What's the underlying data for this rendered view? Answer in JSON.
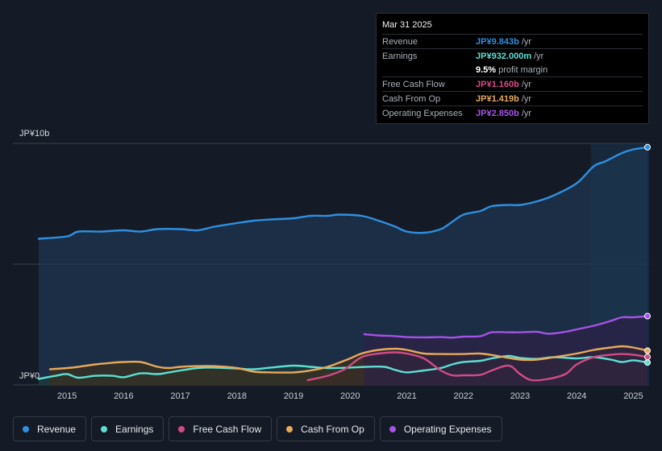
{
  "chart_data": {
    "type": "area",
    "y_axis": {
      "top_label": "JP¥10b",
      "bottom_label": "JP¥0",
      "ylim": [
        0,
        10
      ],
      "unit": "JP¥ billions"
    },
    "x_axis": {
      "ticks": [
        "2015",
        "2016",
        "2017",
        "2018",
        "2019",
        "2020",
        "2021",
        "2022",
        "2023",
        "2024",
        "2025"
      ],
      "xlim": [
        2014.5,
        2025.25
      ]
    },
    "forecast_highlight_from": 2024.25,
    "series": [
      {
        "name": "Revenue",
        "color": "#2f8fe0",
        "fill": true,
        "fill_color": "#1d3550",
        "points": [
          [
            2014.5,
            6.05
          ],
          [
            2015.0,
            6.15
          ],
          [
            2015.2,
            6.35
          ],
          [
            2015.6,
            6.35
          ],
          [
            2016.0,
            6.4
          ],
          [
            2016.3,
            6.35
          ],
          [
            2016.6,
            6.45
          ],
          [
            2017.0,
            6.45
          ],
          [
            2017.3,
            6.4
          ],
          [
            2017.6,
            6.55
          ],
          [
            2018.0,
            6.7
          ],
          [
            2018.3,
            6.8
          ],
          [
            2018.6,
            6.85
          ],
          [
            2019.0,
            6.9
          ],
          [
            2019.3,
            7.0
          ],
          [
            2019.6,
            7.0
          ],
          [
            2019.8,
            7.05
          ],
          [
            2020.2,
            7.0
          ],
          [
            2020.5,
            6.8
          ],
          [
            2020.8,
            6.55
          ],
          [
            2021.0,
            6.35
          ],
          [
            2021.3,
            6.3
          ],
          [
            2021.6,
            6.45
          ],
          [
            2021.8,
            6.75
          ],
          [
            2022.0,
            7.05
          ],
          [
            2022.3,
            7.2
          ],
          [
            2022.5,
            7.4
          ],
          [
            2022.8,
            7.45
          ],
          [
            2023.0,
            7.45
          ],
          [
            2023.3,
            7.6
          ],
          [
            2023.6,
            7.85
          ],
          [
            2024.0,
            8.35
          ],
          [
            2024.3,
            9.05
          ],
          [
            2024.5,
            9.25
          ],
          [
            2024.8,
            9.6
          ],
          [
            2025.0,
            9.75
          ],
          [
            2025.25,
            9.84
          ]
        ]
      },
      {
        "name": "Earnings",
        "color": "#5ce0d2",
        "fill": true,
        "fill_color": "#1e3a3b",
        "points": [
          [
            2014.5,
            0.25
          ],
          [
            2014.8,
            0.38
          ],
          [
            2015.0,
            0.45
          ],
          [
            2015.2,
            0.3
          ],
          [
            2015.5,
            0.38
          ],
          [
            2015.8,
            0.38
          ],
          [
            2016.0,
            0.32
          ],
          [
            2016.3,
            0.48
          ],
          [
            2016.6,
            0.45
          ],
          [
            2016.8,
            0.52
          ],
          [
            2017.0,
            0.6
          ],
          [
            2017.3,
            0.7
          ],
          [
            2017.6,
            0.72
          ],
          [
            2018.0,
            0.68
          ],
          [
            2018.3,
            0.65
          ],
          [
            2018.6,
            0.72
          ],
          [
            2019.0,
            0.8
          ],
          [
            2019.3,
            0.75
          ],
          [
            2019.6,
            0.7
          ],
          [
            2020.0,
            0.72
          ],
          [
            2020.3,
            0.75
          ],
          [
            2020.6,
            0.75
          ],
          [
            2020.8,
            0.62
          ],
          [
            2021.0,
            0.52
          ],
          [
            2021.3,
            0.6
          ],
          [
            2021.6,
            0.7
          ],
          [
            2021.8,
            0.85
          ],
          [
            2022.0,
            0.95
          ],
          [
            2022.3,
            1.0
          ],
          [
            2022.5,
            1.1
          ],
          [
            2022.8,
            1.2
          ],
          [
            2023.0,
            1.12
          ],
          [
            2023.3,
            1.08
          ],
          [
            2023.6,
            1.15
          ],
          [
            2024.0,
            1.1
          ],
          [
            2024.3,
            1.15
          ],
          [
            2024.6,
            1.05
          ],
          [
            2024.8,
            0.95
          ],
          [
            2025.0,
            1.02
          ],
          [
            2025.25,
            0.93
          ]
        ]
      },
      {
        "name": "Free Cash Flow",
        "color": "#d24b84",
        "fill": true,
        "fill_color": "#3a1f33",
        "points": [
          [
            2019.25,
            0.2
          ],
          [
            2019.6,
            0.38
          ],
          [
            2019.9,
            0.65
          ],
          [
            2020.2,
            1.15
          ],
          [
            2020.5,
            1.3
          ],
          [
            2020.8,
            1.35
          ],
          [
            2021.0,
            1.3
          ],
          [
            2021.3,
            1.1
          ],
          [
            2021.6,
            0.6
          ],
          [
            2021.8,
            0.4
          ],
          [
            2022.0,
            0.4
          ],
          [
            2022.3,
            0.42
          ],
          [
            2022.5,
            0.6
          ],
          [
            2022.8,
            0.8
          ],
          [
            2023.0,
            0.45
          ],
          [
            2023.2,
            0.2
          ],
          [
            2023.5,
            0.25
          ],
          [
            2023.8,
            0.45
          ],
          [
            2024.0,
            0.85
          ],
          [
            2024.3,
            1.15
          ],
          [
            2024.6,
            1.25
          ],
          [
            2024.8,
            1.28
          ],
          [
            2025.0,
            1.25
          ],
          [
            2025.25,
            1.16
          ]
        ]
      },
      {
        "name": "Cash From Op",
        "color": "#e8a95a",
        "fill": true,
        "fill_color": "#3a3022",
        "points": [
          [
            2014.7,
            0.65
          ],
          [
            2015.0,
            0.7
          ],
          [
            2015.2,
            0.75
          ],
          [
            2015.5,
            0.85
          ],
          [
            2015.8,
            0.92
          ],
          [
            2016.0,
            0.95
          ],
          [
            2016.3,
            0.95
          ],
          [
            2016.6,
            0.75
          ],
          [
            2016.8,
            0.7
          ],
          [
            2017.0,
            0.75
          ],
          [
            2017.3,
            0.78
          ],
          [
            2017.6,
            0.78
          ],
          [
            2018.0,
            0.7
          ],
          [
            2018.3,
            0.55
          ],
          [
            2018.6,
            0.52
          ],
          [
            2019.0,
            0.52
          ],
          [
            2019.3,
            0.6
          ],
          [
            2019.6,
            0.75
          ],
          [
            2020.0,
            1.1
          ],
          [
            2020.2,
            1.3
          ],
          [
            2020.5,
            1.45
          ],
          [
            2020.8,
            1.5
          ],
          [
            2021.0,
            1.45
          ],
          [
            2021.3,
            1.3
          ],
          [
            2021.6,
            1.28
          ],
          [
            2022.0,
            1.28
          ],
          [
            2022.3,
            1.3
          ],
          [
            2022.6,
            1.2
          ],
          [
            2023.0,
            1.05
          ],
          [
            2023.3,
            1.05
          ],
          [
            2023.6,
            1.15
          ],
          [
            2024.0,
            1.3
          ],
          [
            2024.3,
            1.45
          ],
          [
            2024.6,
            1.55
          ],
          [
            2024.8,
            1.6
          ],
          [
            2025.0,
            1.55
          ],
          [
            2025.25,
            1.42
          ]
        ]
      },
      {
        "name": "Operating Expenses",
        "color": "#a552e6",
        "fill": true,
        "fill_color": "#2c2145",
        "points": [
          [
            2020.25,
            2.1
          ],
          [
            2020.5,
            2.05
          ],
          [
            2020.8,
            2.02
          ],
          [
            2021.0,
            1.98
          ],
          [
            2021.3,
            1.97
          ],
          [
            2021.6,
            1.98
          ],
          [
            2021.8,
            1.96
          ],
          [
            2022.0,
            2.0
          ],
          [
            2022.3,
            2.02
          ],
          [
            2022.5,
            2.18
          ],
          [
            2022.8,
            2.18
          ],
          [
            2023.0,
            2.18
          ],
          [
            2023.3,
            2.2
          ],
          [
            2023.5,
            2.12
          ],
          [
            2023.8,
            2.2
          ],
          [
            2024.0,
            2.3
          ],
          [
            2024.3,
            2.45
          ],
          [
            2024.6,
            2.65
          ],
          [
            2024.8,
            2.8
          ],
          [
            2025.0,
            2.8
          ],
          [
            2025.25,
            2.85
          ]
        ]
      }
    ]
  },
  "tooltip": {
    "date": "Mar 31 2025",
    "rows": [
      {
        "label": "Revenue",
        "value": "JP¥9.843b",
        "unit": "/yr",
        "color": "#2f8fe0"
      },
      {
        "label": "Earnings",
        "value": "JP¥932.000m",
        "unit": "/yr",
        "color": "#5ce0d2"
      },
      {
        "label": "",
        "value": "9.5%",
        "unit": "profit margin",
        "color": "#ffffff"
      },
      {
        "label": "Free Cash Flow",
        "value": "JP¥1.160b",
        "unit": "/yr",
        "color": "#d24b84"
      },
      {
        "label": "Cash From Op",
        "value": "JP¥1.419b",
        "unit": "/yr",
        "color": "#e8a95a"
      },
      {
        "label": "Operating Expenses",
        "value": "JP¥2.850b",
        "unit": "/yr",
        "color": "#a552e6"
      }
    ]
  },
  "legend": [
    {
      "label": "Revenue",
      "color": "#2f8fe0"
    },
    {
      "label": "Earnings",
      "color": "#5ce0d2"
    },
    {
      "label": "Free Cash Flow",
      "color": "#d24b84"
    },
    {
      "label": "Cash From Op",
      "color": "#e8a95a"
    },
    {
      "label": "Operating Expenses",
      "color": "#a552e6"
    }
  ]
}
